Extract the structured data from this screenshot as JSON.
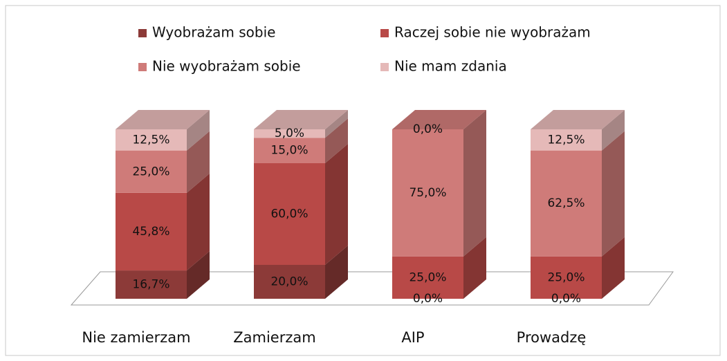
{
  "chart_data": {
    "type": "bar",
    "stacked": true,
    "three_d": true,
    "categories": [
      "Nie zamierzam",
      "Zamierzam",
      "AIP",
      "Prowadzę"
    ],
    "series": [
      {
        "name": "Wyobrażam sobie",
        "color": "#8c3a38",
        "values": [
          16.7,
          20.0,
          0.0,
          0.0
        ],
        "value_labels": [
          "16,7%",
          "20,0%",
          "0,0%",
          "0,0%"
        ]
      },
      {
        "name": "Raczej sobie nie wyobrażam",
        "color": "#b84947",
        "values": [
          45.8,
          60.0,
          25.0,
          25.0
        ],
        "value_labels": [
          "45,8%",
          "60,0%",
          "25,0%",
          "25,0%"
        ]
      },
      {
        "name": "Nie wyobrażam sobie",
        "color": "#cf7b79",
        "values": [
          25.0,
          15.0,
          75.0,
          62.5
        ],
        "value_labels": [
          "25,0%",
          "15,0%",
          "75,0%",
          "62,5%"
        ]
      },
      {
        "name": "Nie mam zdania",
        "color": "#e5b9b8",
        "values": [
          12.5,
          5.0,
          0.0,
          12.5
        ],
        "value_labels": [
          "12,5%",
          "5,0%",
          "0,0%",
          "12,5%"
        ]
      }
    ],
    "ylim": [
      0,
      100
    ],
    "legend": "top"
  }
}
